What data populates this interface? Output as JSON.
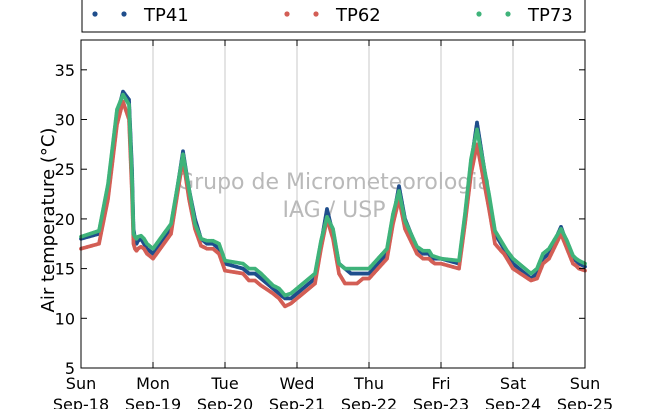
{
  "chart_data": {
    "type": "scatter",
    "title": "",
    "xlabel": "",
    "ylabel": "Air temperature (°C)",
    "ylim": [
      5,
      38
    ],
    "yticks": [
      5,
      10,
      15,
      20,
      25,
      30,
      35
    ],
    "xlim": [
      "2016-09-18 00:00",
      "2016-09-25 00:00"
    ],
    "xticks": [
      {
        "day": "Sun",
        "date": "Sep-18"
      },
      {
        "day": "Mon",
        "date": "Sep-19"
      },
      {
        "day": "Tue",
        "date": "Sep-20"
      },
      {
        "day": "Wed",
        "date": "Sep-21"
      },
      {
        "day": "Thu",
        "date": "Sep-22"
      },
      {
        "day": "Fri",
        "date": "Sep-23"
      },
      {
        "day": "Sat",
        "date": "Sep-24"
      },
      {
        "day": "Sun",
        "date": "Sep-25"
      }
    ],
    "grid": "vertical",
    "legend": "top",
    "watermark": [
      "Grupo de Micrometeorologia",
      "IAG / USP"
    ],
    "series": [
      {
        "name": "TP41",
        "color": "#1f4e8c",
        "x_hours": [
          0,
          6,
          9,
          12,
          14,
          16,
          17,
          17.5,
          18,
          18.5,
          19,
          20,
          21,
          22,
          24,
          30,
          34,
          36,
          38,
          40,
          42,
          43,
          44,
          46,
          48,
          54,
          56,
          58,
          60,
          64,
          66,
          68,
          70,
          72,
          78,
          80,
          82,
          84,
          86,
          88,
          90,
          91,
          92,
          94,
          96,
          102,
          104,
          106,
          108,
          112,
          114,
          116,
          117,
          118,
          120,
          126,
          128,
          130,
          132,
          136,
          138,
          140,
          141,
          142,
          144,
          150,
          152,
          154,
          156,
          160,
          162,
          164,
          165,
          166,
          168
        ],
        "y": [
          18.0,
          18.5,
          23.0,
          30.5,
          32.8,
          32.0,
          25.0,
          19.0,
          18.0,
          17.5,
          17.8,
          18.0,
          17.5,
          17.0,
          16.5,
          19.0,
          26.8,
          23.0,
          20.0,
          18.0,
          17.5,
          17.5,
          17.5,
          17.0,
          15.5,
          15.0,
          14.5,
          14.5,
          14.0,
          13.0,
          12.5,
          12.0,
          12.0,
          12.5,
          14.0,
          17.5,
          21.0,
          18.5,
          15.5,
          15.0,
          14.5,
          14.5,
          14.5,
          14.5,
          14.5,
          16.5,
          20.0,
          23.3,
          20.0,
          17.0,
          16.5,
          16.5,
          16.0,
          16.0,
          16.0,
          15.5,
          20.0,
          25.5,
          29.7,
          22.0,
          18.5,
          17.5,
          17.0,
          16.5,
          15.5,
          14.0,
          14.5,
          16.0,
          16.5,
          19.2,
          17.5,
          16.0,
          15.8,
          15.5,
          15.2
        ]
      },
      {
        "name": "TP62",
        "color": "#d35e55",
        "x_hours": [
          0,
          6,
          9,
          12,
          14,
          16,
          17,
          17.5,
          18,
          18.5,
          19,
          20,
          21,
          22,
          24,
          30,
          34,
          36,
          38,
          40,
          42,
          43,
          44,
          46,
          48,
          54,
          56,
          58,
          60,
          64,
          66,
          68,
          70,
          72,
          78,
          80,
          82,
          84,
          86,
          88,
          90,
          91,
          92,
          94,
          96,
          102,
          104,
          106,
          108,
          112,
          114,
          116,
          117,
          118,
          120,
          126,
          128,
          130,
          132,
          136,
          138,
          140,
          141,
          142,
          144,
          150,
          152,
          154,
          156,
          160,
          162,
          164,
          165,
          166,
          168
        ],
        "y": [
          17.0,
          17.5,
          22.0,
          29.5,
          31.8,
          30.0,
          22.5,
          17.5,
          17.0,
          16.8,
          17.0,
          17.2,
          17.0,
          16.5,
          16.0,
          18.5,
          26.0,
          22.0,
          19.0,
          17.3,
          17.0,
          17.0,
          17.0,
          16.5,
          14.8,
          14.5,
          13.8,
          13.8,
          13.3,
          12.5,
          12.0,
          11.2,
          11.5,
          12.0,
          13.5,
          17.0,
          20.0,
          18.0,
          14.5,
          13.5,
          13.5,
          13.5,
          13.5,
          14.0,
          14.0,
          16.0,
          19.5,
          22.0,
          19.0,
          16.5,
          16.0,
          16.0,
          15.7,
          15.5,
          15.5,
          15.0,
          19.5,
          24.5,
          27.5,
          21.0,
          17.5,
          16.8,
          16.5,
          16.0,
          15.0,
          13.8,
          14.0,
          15.5,
          16.0,
          18.5,
          17.0,
          15.5,
          15.3,
          15.0,
          14.8
        ]
      },
      {
        "name": "TP73",
        "color": "#3fb37a",
        "x_hours": [
          0,
          6,
          9,
          12,
          14,
          16,
          17,
          17.5,
          18,
          18.5,
          19,
          20,
          21,
          22,
          24,
          30,
          34,
          36,
          38,
          40,
          42,
          43,
          44,
          46,
          48,
          54,
          56,
          58,
          60,
          64,
          66,
          68,
          70,
          72,
          78,
          80,
          82,
          84,
          86,
          88,
          90,
          91,
          92,
          94,
          96,
          102,
          104,
          106,
          108,
          112,
          114,
          116,
          117,
          118,
          120,
          126,
          128,
          130,
          132,
          136,
          138,
          140,
          141,
          142,
          144,
          150,
          152,
          154,
          156,
          160,
          162,
          164,
          165,
          166,
          168
        ],
        "y": [
          18.2,
          18.8,
          23.5,
          31.0,
          32.5,
          31.5,
          24.0,
          18.5,
          18.2,
          18.0,
          18.2,
          18.3,
          18.0,
          17.5,
          17.0,
          19.5,
          26.5,
          23.0,
          19.5,
          18.0,
          17.8,
          17.8,
          17.8,
          17.5,
          15.8,
          15.5,
          15.0,
          15.0,
          14.5,
          13.3,
          13.0,
          12.3,
          12.5,
          13.0,
          14.5,
          17.8,
          20.2,
          19.0,
          15.5,
          15.0,
          15.0,
          15.0,
          15.0,
          15.0,
          15.0,
          17.0,
          20.5,
          22.8,
          19.8,
          17.2,
          16.8,
          16.8,
          16.3,
          16.2,
          16.0,
          15.8,
          20.5,
          26.0,
          29.0,
          22.5,
          18.8,
          17.8,
          17.3,
          16.8,
          16.0,
          14.5,
          15.0,
          16.5,
          17.0,
          19.0,
          17.8,
          16.3,
          16.0,
          15.8,
          15.5
        ]
      }
    ]
  }
}
